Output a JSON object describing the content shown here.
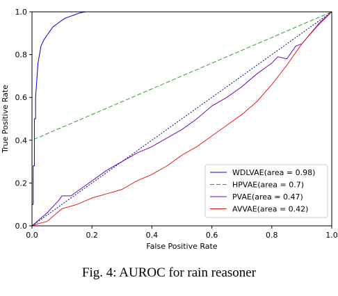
{
  "caption": "Fig. 4: AUROC for rain reasoner",
  "chart_data": {
    "type": "line",
    "xlabel": "False Positive Rate",
    "ylabel": "True Positive Rate",
    "xlim": [
      0,
      1
    ],
    "ylim": [
      0,
      1
    ],
    "xticks": [
      "0.0",
      "0.2",
      "0.4",
      "0.6",
      "0.8",
      "1.0"
    ],
    "yticks": [
      "0.0",
      "0.2",
      "0.4",
      "0.6",
      "0.8",
      "1.0"
    ],
    "grid": false,
    "legend_position": "lower-right",
    "series": [
      {
        "name": "WDLVAE(area = 0.98)",
        "color": "#0000cc",
        "style": "solid",
        "x": [
          0,
          0.0,
          0.004,
          0.004,
          0.008,
          0.008,
          0.012,
          0.012,
          0.016,
          0.02,
          0.025,
          0.03,
          0.04,
          0.05,
          0.06,
          0.07,
          0.08,
          0.09,
          0.1,
          0.11,
          0.12,
          0.13,
          0.14,
          0.15,
          0.16,
          0.18,
          0.22,
          0.3,
          0.4,
          0.55,
          0.75,
          1.0
        ],
        "y": [
          0,
          0.1,
          0.1,
          0.28,
          0.28,
          0.5,
          0.5,
          0.6,
          0.68,
          0.76,
          0.8,
          0.84,
          0.87,
          0.89,
          0.91,
          0.93,
          0.94,
          0.95,
          0.96,
          0.97,
          0.975,
          0.98,
          0.985,
          0.99,
          0.995,
          1.0,
          1.0,
          1.0,
          1.0,
          1.0,
          1.0,
          1.0
        ]
      },
      {
        "name": "HPVAE(area = 0.7)",
        "color": "#2ca02c",
        "style": "dashed",
        "x": [
          0,
          0.0,
          1.0
        ],
        "y": [
          0,
          0.4,
          1.0
        ]
      },
      {
        "name": "PVAE(area = 0.47)",
        "color": "#6a0dad",
        "style": "solid",
        "x": [
          0,
          0.05,
          0.09,
          0.1,
          0.13,
          0.2,
          0.25,
          0.3,
          0.35,
          0.4,
          0.45,
          0.5,
          0.55,
          0.6,
          0.65,
          0.7,
          0.75,
          0.8,
          0.82,
          0.85,
          0.88,
          0.9,
          0.93,
          0.96,
          1.0
        ],
        "y": [
          0,
          0.06,
          0.12,
          0.14,
          0.14,
          0.21,
          0.26,
          0.3,
          0.34,
          0.37,
          0.41,
          0.45,
          0.5,
          0.56,
          0.6,
          0.65,
          0.71,
          0.76,
          0.79,
          0.78,
          0.84,
          0.85,
          0.9,
          0.95,
          1.0
        ]
      },
      {
        "name": "AVVAE(area = 0.42)",
        "color": "#e31a1c",
        "style": "solid",
        "x": [
          0,
          0.02,
          0.05,
          0.1,
          0.15,
          0.2,
          0.25,
          0.3,
          0.35,
          0.4,
          0.45,
          0.5,
          0.55,
          0.6,
          0.65,
          0.7,
          0.75,
          0.8,
          0.85,
          0.9,
          0.95,
          1.0
        ],
        "y": [
          0,
          0.01,
          0.02,
          0.08,
          0.1,
          0.13,
          0.15,
          0.17,
          0.21,
          0.24,
          0.28,
          0.33,
          0.37,
          0.42,
          0.47,
          0.52,
          0.58,
          0.66,
          0.75,
          0.85,
          0.93,
          1.0
        ]
      },
      {
        "name": "",
        "color": "#000080",
        "style": "dotted",
        "x": [
          0,
          1
        ],
        "y": [
          0,
          1
        ]
      }
    ]
  }
}
